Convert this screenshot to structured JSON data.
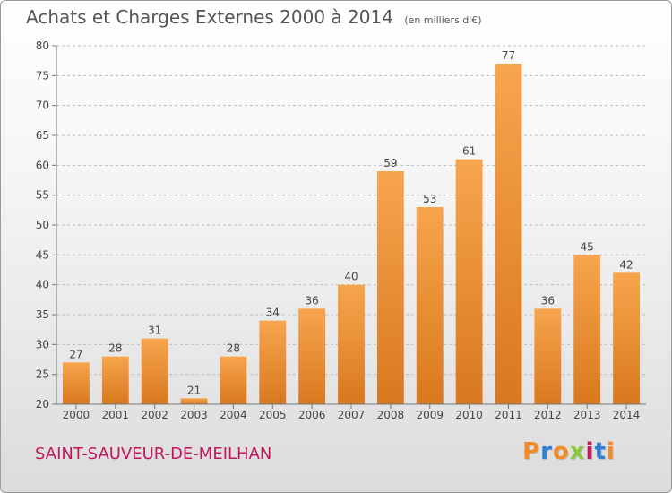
{
  "header": {
    "title": "Achats et Charges Externes 2000 à 2014",
    "unit": "(en milliers d'€)"
  },
  "footer": {
    "commune": "SAINT-SAUVEUR-DE-MEILHAN",
    "logo_text": "Proxiti",
    "logo_colors": [
      "#f28c28",
      "#2e7fd6",
      "#f28c28",
      "#8cc63f",
      "#c2185b",
      "#2e7fd6",
      "#f28c28"
    ]
  },
  "colors": {
    "bar_top": "#f7a54e",
    "bar_bottom": "#d9781e",
    "grid": "#bbbbbb",
    "axis_text": "#444444"
  },
  "chart_data": {
    "type": "bar",
    "title": "Achats et Charges Externes 2000 à 2014",
    "subtitle": "(en milliers d'€)",
    "categories": [
      "2000",
      "2001",
      "2002",
      "2003",
      "2004",
      "2005",
      "2006",
      "2007",
      "2008",
      "2009",
      "2010",
      "2011",
      "2012",
      "2013",
      "2014"
    ],
    "values": [
      27,
      28,
      31,
      21,
      28,
      34,
      36,
      40,
      59,
      53,
      61,
      77,
      36,
      45,
      42
    ],
    "ylim": [
      20,
      80
    ],
    "yticks": [
      20,
      25,
      30,
      35,
      40,
      45,
      50,
      55,
      60,
      65,
      70,
      75,
      80
    ],
    "grid": "horizontal-dashed",
    "data_labels": true,
    "xlabel": "",
    "ylabel": ""
  }
}
